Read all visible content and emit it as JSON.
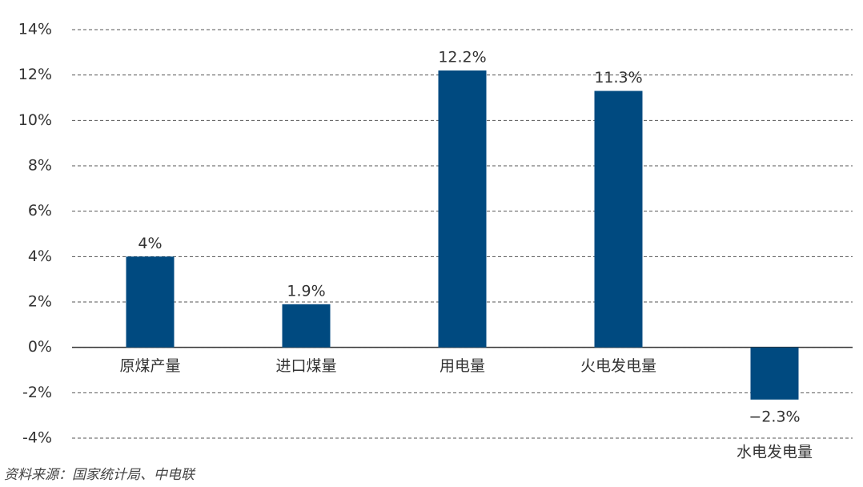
{
  "chart_data": {
    "type": "bar",
    "categories": [
      "原煤产量",
      "进口煤量",
      "用电量",
      "火电发电量",
      "水电发电量"
    ],
    "values": [
      4,
      1.9,
      12.2,
      11.3,
      -2.3
    ],
    "value_labels": [
      "4%",
      "1.9%",
      "12.2%",
      "11.3%",
      "−2.3%"
    ],
    "color": "#004a80",
    "ylim": [
      -4,
      14
    ],
    "yticks": [
      {
        "value": -4,
        "label": "-4%"
      },
      {
        "value": -2,
        "label": "-2%"
      },
      {
        "value": 0,
        "label": "0%"
      },
      {
        "value": 2,
        "label": "2%"
      },
      {
        "value": 4,
        "label": "4%"
      },
      {
        "value": 6,
        "label": "6%"
      },
      {
        "value": 8,
        "label": "8%"
      },
      {
        "value": 10,
        "label": "10%"
      },
      {
        "value": 12,
        "label": "12%"
      },
      {
        "value": 14,
        "label": "14%"
      }
    ],
    "grid": true,
    "source": "资料来源：国家统计局、中电联"
  }
}
